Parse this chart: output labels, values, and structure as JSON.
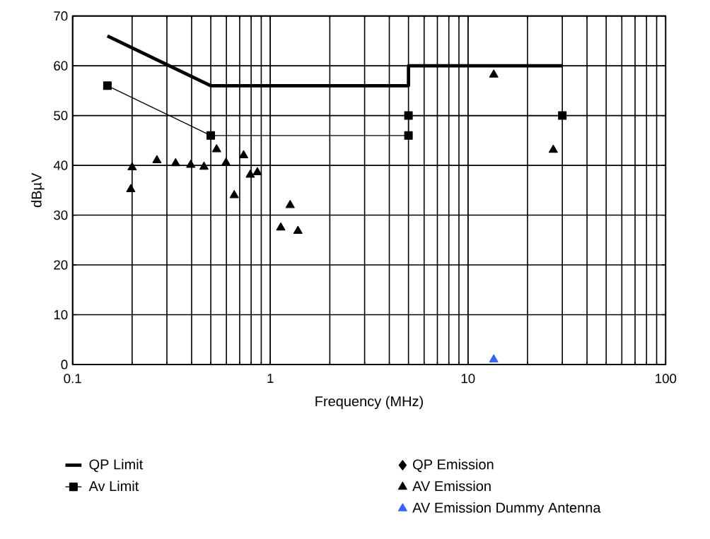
{
  "chart_data": {
    "type": "scatter",
    "xlabel": "Frequency (MHz)",
    "ylabel": "dBµV",
    "log": "x",
    "xlim": [
      0.1,
      100
    ],
    "xticks": [
      0.1,
      1,
      10,
      100
    ],
    "ylim": [
      0,
      70
    ],
    "yticks": [
      0,
      10,
      20,
      30,
      40,
      50,
      60,
      70
    ],
    "grid": true,
    "legend": "bottom",
    "series": [
      {
        "name": "QP Limit",
        "type": "line",
        "color": "#000000",
        "marker": "none",
        "x": [
          0.15,
          0.5,
          5,
          5,
          30
        ],
        "values": [
          66,
          56,
          56,
          60,
          60
        ]
      },
      {
        "name": "Av Limit",
        "type": "line",
        "color": "#000000",
        "marker": "square",
        "x": [
          0.15,
          0.5,
          5,
          5,
          30
        ],
        "values": [
          56,
          46,
          46,
          50,
          50
        ]
      },
      {
        "name": "QP Emission",
        "color": "#000000",
        "marker": "diamond"
      },
      {
        "name": "AV Emission",
        "color": "#000000",
        "marker": "triangle",
        "x": [
          0.197,
          0.2,
          0.267,
          0.332,
          0.396,
          0.462,
          0.535,
          0.597,
          0.657,
          0.733,
          0.792,
          0.86,
          1.13,
          1.26,
          1.38,
          13.5,
          27
        ],
        "values": [
          35.2,
          39.6,
          41.0,
          40.4,
          40.1,
          39.7,
          43.2,
          40.5,
          34.0,
          42.0,
          38.1,
          38.6,
          27.5,
          32.0,
          26.8,
          58.2,
          43.1
        ]
      },
      {
        "name": "AV Emission Dummy Antenna",
        "color": "#3366ff",
        "marker": "triangle",
        "x": [
          13.5
        ],
        "values": [
          1.0
        ]
      }
    ]
  }
}
